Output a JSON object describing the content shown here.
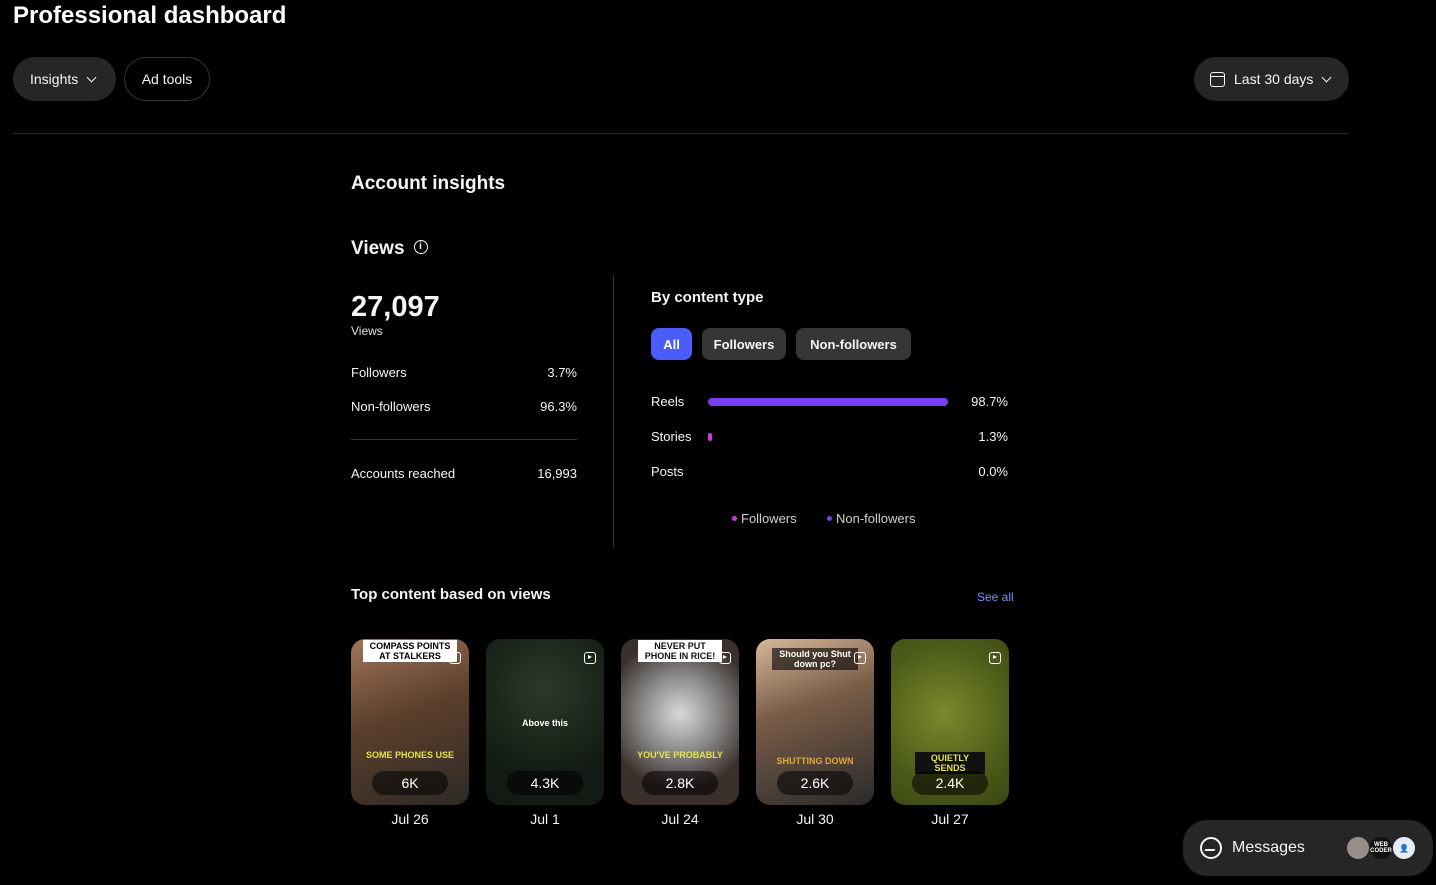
{
  "page_title": "Professional dashboard",
  "toolbar": {
    "insights_label": "Insights",
    "adtools_label": "Ad tools",
    "range_label": "Last 30 days"
  },
  "account_insights": {
    "title": "Account insights",
    "views_title": "Views",
    "views_total": "27,097",
    "views_sub": "Views",
    "rows": [
      {
        "label": "Followers",
        "value": "3.7%"
      },
      {
        "label": "Non-followers",
        "value": "96.3%"
      }
    ],
    "accounts_reached_label": "Accounts reached",
    "accounts_reached_value": "16,993"
  },
  "by_content_type": {
    "title": "By content type",
    "tabs": [
      "All",
      "Followers",
      "Non-followers"
    ],
    "bars": [
      {
        "label": "Reels",
        "pct": "98.7%",
        "fraction": 0.987
      },
      {
        "label": "Stories",
        "pct": "1.3%",
        "fraction": 0.013
      },
      {
        "label": "Posts",
        "pct": "0.0%",
        "fraction": 0.0
      }
    ],
    "legend": [
      {
        "label": "Followers",
        "color": "#d13ad8"
      },
      {
        "label": "Non-followers",
        "color": "#7b3ff2"
      }
    ]
  },
  "top_content": {
    "title": "Top content based on views",
    "see_all": "See all",
    "items": [
      {
        "count": "6K",
        "date": "Jul 26",
        "top_caption": "COMPASS POINTS AT STALKERS",
        "bottom_caption": "SOME PHONES USE"
      },
      {
        "count": "4.3K",
        "date": "Jul 1",
        "top_caption": "",
        "bottom_caption": "Above this"
      },
      {
        "count": "2.8K",
        "date": "Jul 24",
        "top_caption": "NEVER PUT PHONE IN RICE!",
        "bottom_caption": "YOU'VE PROBABLY"
      },
      {
        "count": "2.6K",
        "date": "Jul 30",
        "top_caption": "Should you Shut down pc?",
        "bottom_caption": "SHUTTING DOWN"
      },
      {
        "count": "2.4K",
        "date": "Jul 27",
        "top_caption": "",
        "bottom_caption": "QUIETLY SENDS"
      }
    ]
  },
  "messages": {
    "label": "Messages",
    "avatar_text": "WEB CODER"
  }
}
